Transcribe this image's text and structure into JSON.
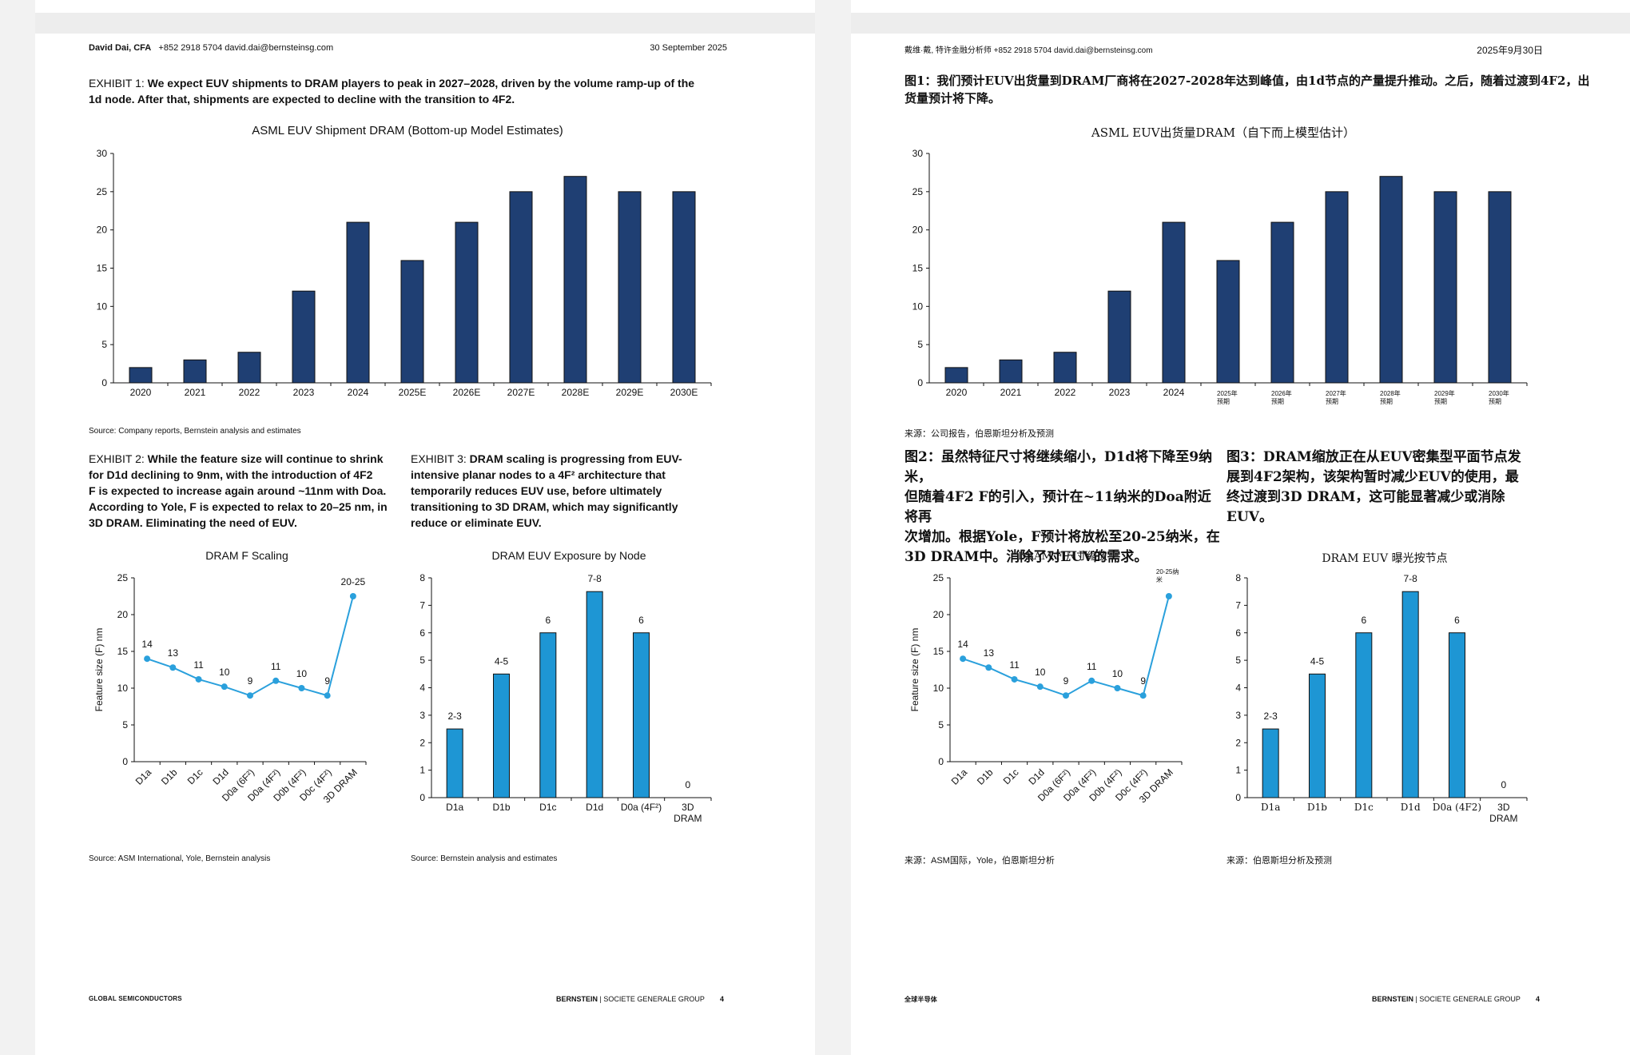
{
  "colors": {
    "bar_dark": "#1f3f73",
    "bar_light": "#1e96d4",
    "line": "#2aa0dc"
  },
  "en": {
    "header": {
      "author": "David Dai, CFA",
      "contact": "+852 2918 5704  david.dai@bernsteinsg.com",
      "date": "30 September 2025"
    },
    "exhibit1": {
      "lead": "EXHIBIT 1: ",
      "line1": "We expect EUV shipments to DRAM players to peak in 2027–2028, driven by the volume ramp-up of the",
      "line2": "1d node. After that, shipments are expected to decline with the transition to 4F2.",
      "source": "Source: Company reports, Bernstein analysis and estimates"
    },
    "exhibit2": {
      "lead": "EXHIBIT 2: ",
      "lines": [
        "While the feature size will continue to shrink",
        "for D1d declining to 9nm, with the introduction of 4F2",
        "F is expected to increase again around ~11nm with Doa.",
        "According to Yole, F is expected to relax to 20–25 nm, in",
        "3D DRAM. Eliminating the need of EUV."
      ],
      "source": "Source: ASM International, Yole, Bernstein analysis"
    },
    "exhibit3": {
      "lead": "EXHIBIT 3: ",
      "lines": [
        "DRAM scaling is progressing from EUV-",
        "intensive planar nodes to a 4F² architecture that",
        "temporarily reduces EUV use, before ultimately",
        "transitioning to 3D DRAM, which may significantly",
        "reduce or eliminate EUV."
      ],
      "source": "Source: Bernstein analysis and estimates"
    },
    "footer": {
      "section": "GLOBAL SEMICONDUCTORS",
      "brand": "BERNSTEIN",
      "group": " | SOCIETE GENERALE GROUP",
      "page": "4"
    }
  },
  "zh": {
    "header": {
      "author": "戴维·戴, 特许金融分析师",
      "contact": "+852 2918 5704  david.dai@bernsteinsg.com",
      "date": "2025年9月30日"
    },
    "exhibit1": {
      "line1": "图1：我们预计EUV出货量到DRAM厂商将在2027-2028年达到峰值，由1d节点的产量提升推动。之后，随着过渡到4F2，出",
      "line2": "货量预计将下降。",
      "source": "来源：公司报告，伯恩斯坦分析及预测"
    },
    "exhibit2": {
      "lines": [
        "图2：虽然特征尺寸将继续缩小，D1d将下降至9纳米，",
        "但随着4F2 F的引入，预计在~11纳米的Doa附近将再",
        "次增加。根据Yole，F预计将放松至20-25纳米，在",
        "3D DRAM中。消除了对EUV的需求。"
      ],
      "source": "来源：ASM国际，Yole，伯恩斯坦分析"
    },
    "exhibit3": {
      "lines": [
        "图3：DRAM缩放正在从EUV密集型平面节点发",
        "展到4F2架构，该架构暂时减少EUV的使用，最",
        "终过渡到3D DRAM，这可能显著减少或消除",
        "EUV。"
      ],
      "source": "来源：伯恩斯坦分析及预测"
    },
    "footer": {
      "section": "全球半导体",
      "brand": "BERNSTEIN",
      "group": " | SOCIETE GENERALE GROUP",
      "page": "4"
    }
  },
  "chart_data": [
    {
      "id": "euv-shipment-en",
      "type": "bar",
      "title": "ASML EUV Shipment DRAM (Bottom-up Model Estimates)",
      "categories": [
        "2020",
        "2021",
        "2022",
        "2023",
        "2024",
        "2025E",
        "2026E",
        "2027E",
        "2028E",
        "2029E",
        "2030E"
      ],
      "values": [
        2,
        3,
        4,
        12,
        21,
        16,
        21,
        25,
        27,
        25,
        25
      ],
      "ylim": [
        0,
        30
      ],
      "yticks": [
        0,
        5,
        10,
        15,
        20,
        25,
        30
      ],
      "xlabel": "",
      "ylabel": "",
      "grid": false,
      "legend": "none"
    },
    {
      "id": "f-scaling-en",
      "type": "line",
      "title": "DRAM F Scaling",
      "categories": [
        "D1a",
        "D1b",
        "D1c",
        "D1d",
        "D0a (6F²)",
        "D0a (4F²)",
        "D0b (4F²)",
        "D0c (4F²)",
        "3D DRAM"
      ],
      "values": [
        14,
        12.8,
        11.2,
        10.2,
        9,
        11,
        10,
        9,
        22.5
      ],
      "labels": [
        "14",
        "13",
        "11",
        "10",
        "9",
        "11",
        "10",
        "9",
        "20-25"
      ],
      "ylim": [
        0,
        25
      ],
      "yticks": [
        0,
        5,
        10,
        15,
        20,
        25
      ],
      "xlabel": "",
      "ylabel": "Feature size (F) nm",
      "grid": false,
      "legend": "none"
    },
    {
      "id": "euv-exposure-en",
      "type": "bar",
      "title": "DRAM EUV Exposure by Node",
      "categories": [
        "D1a",
        "D1b",
        "D1c",
        "D1d",
        "D0a (4F²)",
        "3D DRAM"
      ],
      "values": [
        2.5,
        4.5,
        6,
        7.5,
        6,
        0
      ],
      "labels": [
        "2-3",
        "4-5",
        "6",
        "7-8",
        "6",
        "0"
      ],
      "ylim": [
        0,
        8
      ],
      "yticks": [
        0,
        1,
        2,
        3,
        4,
        5,
        6,
        7,
        8
      ],
      "xlabel": "",
      "ylabel": "",
      "grid": false,
      "legend": "none"
    },
    {
      "id": "euv-shipment-zh",
      "type": "bar",
      "title": "ASML EUV出货量DRAM（自下而上模型估计）",
      "categories": [
        "2020",
        "2021",
        "2022",
        "2023",
        "2024",
        "2025年预期",
        "2026年预期",
        "2027年预期",
        "2028年预期",
        "2029年预期",
        "2030年预期"
      ],
      "values": [
        2,
        3,
        4,
        12,
        21,
        16,
        21,
        25,
        27,
        25,
        25
      ],
      "ylim": [
        0,
        30
      ],
      "yticks": [
        0,
        5,
        10,
        15,
        20,
        25,
        30
      ],
      "xlabel": "",
      "ylabel": "",
      "grid": false,
      "legend": "none"
    },
    {
      "id": "f-scaling-zh",
      "type": "line",
      "title": "DRAM F 尺寸缩放",
      "categories": [
        "D1a",
        "D1b",
        "D1c",
        "D1d",
        "D0a (6F²)",
        "D0a (4F²)",
        "D0b (4F²)",
        "D0c (4F²)",
        "3D DRAM"
      ],
      "values": [
        14,
        12.8,
        11.2,
        10.2,
        9,
        11,
        10,
        9,
        22.5
      ],
      "labels": [
        "14",
        "13",
        "11",
        "10",
        "9",
        "11",
        "10",
        "9",
        "20-25纳米"
      ],
      "ylim": [
        0,
        25
      ],
      "yticks": [
        0,
        5,
        10,
        15,
        20,
        25
      ],
      "xlabel": "",
      "ylabel": "Feature size (F) nm",
      "grid": false,
      "legend": "none"
    },
    {
      "id": "euv-exposure-zh",
      "type": "bar",
      "title": "DRAM EUV 曝光按节点",
      "categories": [
        "D1a",
        "D1b",
        "D1c",
        "D1d",
        "D0a (4F2)",
        "3D DRAM"
      ],
      "values": [
        2.5,
        4.5,
        6,
        7.5,
        6,
        0
      ],
      "labels": [
        "2-3",
        "4-5",
        "6",
        "7-8",
        "6",
        "0"
      ],
      "ylim": [
        0,
        8
      ],
      "yticks": [
        0,
        1,
        2,
        3,
        4,
        5,
        6,
        7,
        8
      ],
      "xlabel": "",
      "ylabel": "",
      "grid": false,
      "legend": "none"
    }
  ]
}
